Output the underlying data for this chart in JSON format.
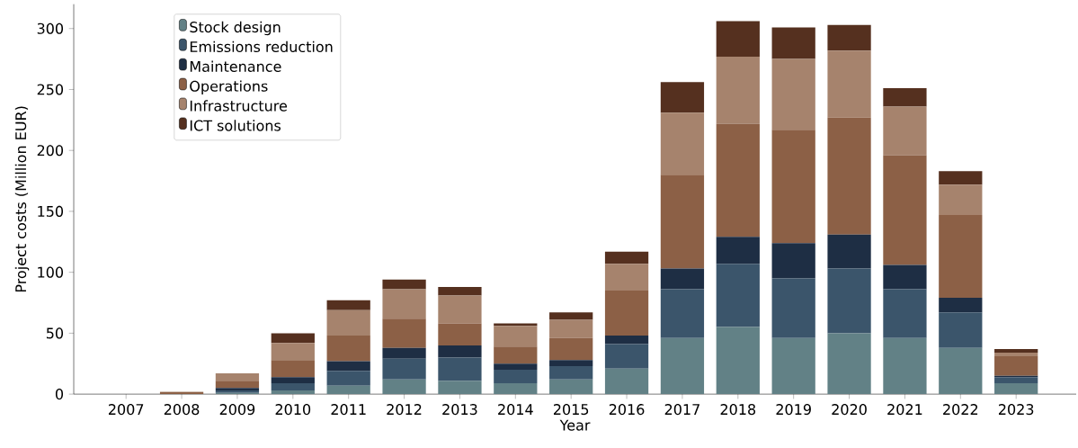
{
  "chart_data": {
    "type": "bar",
    "stacked": true,
    "xlabel": "Year",
    "ylabel": "Project costs (Million EUR)",
    "categories": [
      "2007",
      "2008",
      "2009",
      "2010",
      "2011",
      "2012",
      "2013",
      "2014",
      "2015",
      "2016",
      "2017",
      "2018",
      "2019",
      "2020",
      "2021",
      "2022",
      "2023"
    ],
    "series": [
      {
        "name": "Stock design",
        "color": "#628186",
        "values": [
          0,
          0,
          1,
          3,
          7,
          12,
          11,
          9,
          12,
          21,
          46,
          55,
          46,
          50,
          46,
          38,
          9
        ]
      },
      {
        "name": "Emissions reduction",
        "color": "#3b556b",
        "values": [
          0,
          0,
          2,
          6,
          12,
          17,
          19,
          11,
          11,
          20,
          40,
          52,
          49,
          53,
          40,
          29,
          5
        ]
      },
      {
        "name": "Maintenance",
        "color": "#1e2e44",
        "values": [
          0,
          0,
          2,
          5,
          8,
          9,
          10,
          5,
          5,
          7,
          17,
          22,
          29,
          28,
          20,
          12,
          1
        ]
      },
      {
        "name": "Operations",
        "color": "#8c6046",
        "values": [
          0,
          1.5,
          6,
          14,
          21,
          24,
          18,
          14,
          18,
          37,
          77,
          93,
          93,
          96,
          90,
          68,
          16
        ]
      },
      {
        "name": "Infrastructure",
        "color": "#a6836d",
        "values": [
          0,
          0.5,
          6,
          14,
          21,
          24,
          23,
          17,
          15,
          22,
          51,
          55,
          58,
          55,
          40,
          25,
          3
        ]
      },
      {
        "name": "ICT solutions",
        "color": "#55301f",
        "values": [
          0,
          0,
          0,
          8,
          8,
          8,
          7,
          2,
          6,
          10,
          25,
          29,
          26,
          21,
          15,
          11,
          3
        ]
      }
    ],
    "ylim": [
      0,
      320
    ],
    "yticks": [
      0,
      50,
      100,
      150,
      200,
      250,
      300
    ],
    "legend": "top left",
    "grid": false
  }
}
